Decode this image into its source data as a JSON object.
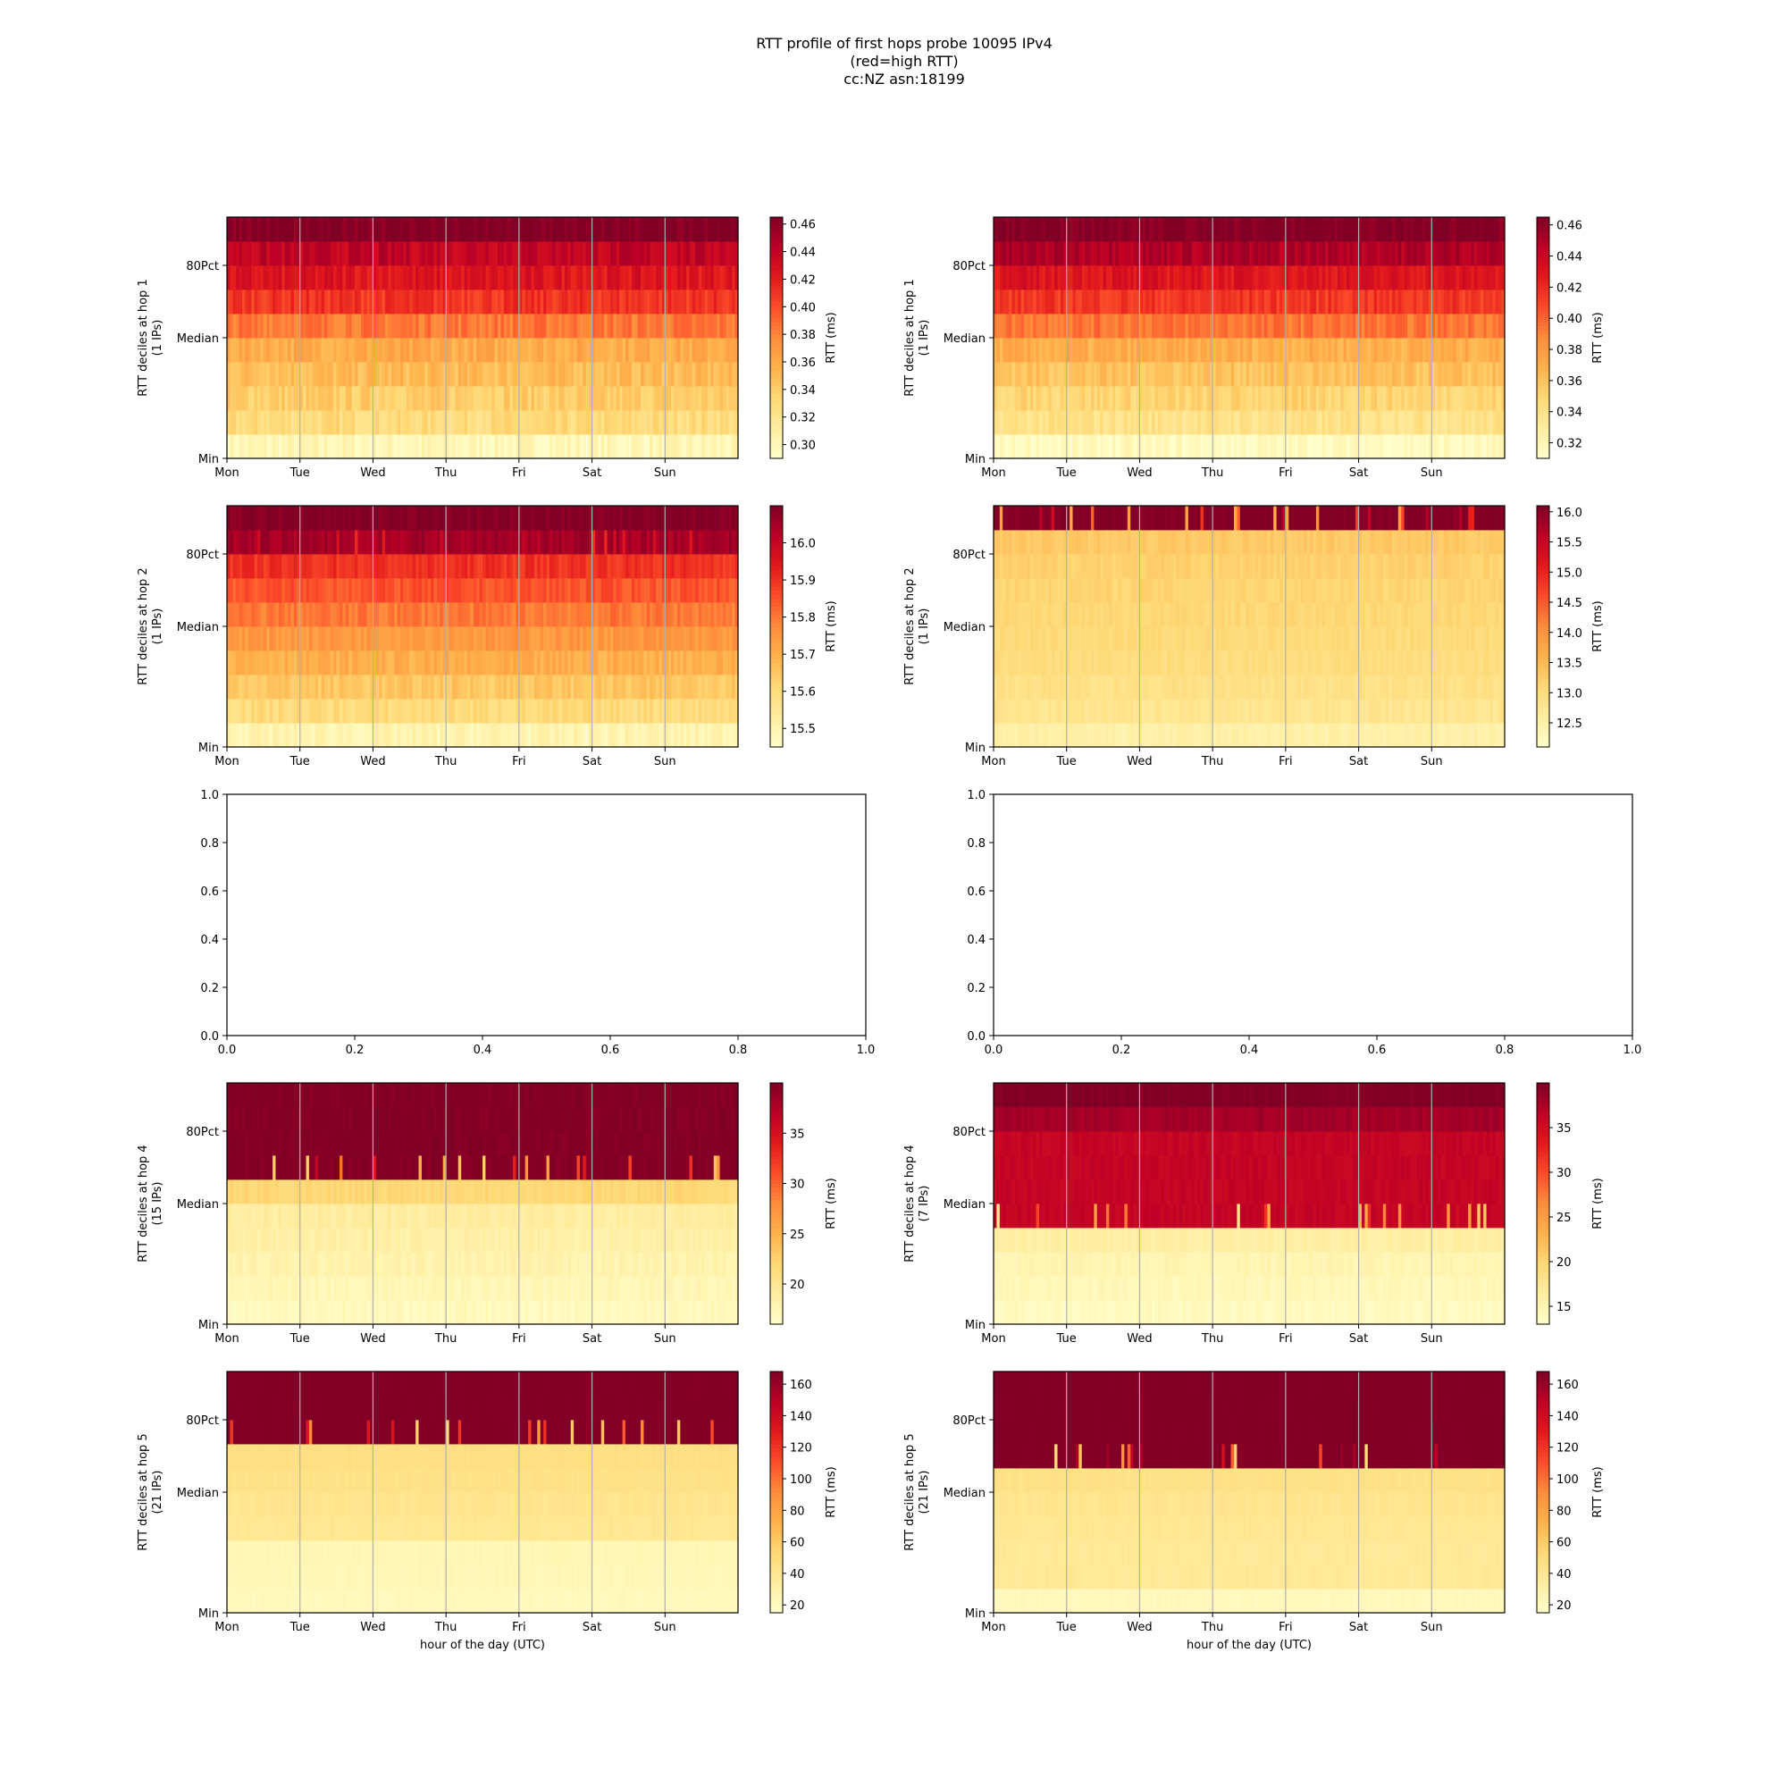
{
  "figure_title": {
    "line1": "RTT profile of first hops probe 10095 IPv4",
    "line2": "(red=high RTT)",
    "line3": "cc:NZ asn:18199"
  },
  "chart_data": [
    {
      "type": "heatmap",
      "ylabel": "RTT deciles at hop 1",
      "ylabel2": "(1 IPs)",
      "cbar_label": "RTT (ms)",
      "cbar_range": [
        0.29,
        0.465
      ],
      "cbar_ticks": [
        "0.30",
        "0.32",
        "0.34",
        "0.36",
        "0.38",
        "0.40",
        "0.42",
        "0.44",
        "0.46"
      ],
      "y_tick_labels": [
        "Min",
        "Median",
        "80Pct"
      ],
      "x_tick_labels": [
        "Mon",
        "Tue",
        "Wed",
        "Thu",
        "Fri",
        "Sat",
        "Sun"
      ],
      "xlabel": "",
      "decile_values": [
        0.3,
        0.33,
        0.34,
        0.35,
        0.36,
        0.385,
        0.41,
        0.425,
        0.44,
        0.465
      ],
      "noise": 0.01,
      "spikes": []
    },
    {
      "type": "heatmap",
      "ylabel": "RTT deciles at hop 1",
      "ylabel2": "(1 IPs)",
      "cbar_label": "RTT (ms)",
      "cbar_range": [
        0.31,
        0.465
      ],
      "cbar_ticks": [
        "0.32",
        "0.34",
        "0.36",
        "0.38",
        "0.40",
        "0.42",
        "0.44",
        "0.46"
      ],
      "y_tick_labels": [
        "Min",
        "Median",
        "80Pct"
      ],
      "x_tick_labels": [
        "Mon",
        "Tue",
        "Wed",
        "Thu",
        "Fri",
        "Sat",
        "Sun"
      ],
      "xlabel": "",
      "decile_values": [
        0.315,
        0.34,
        0.35,
        0.36,
        0.37,
        0.395,
        0.415,
        0.43,
        0.45,
        0.465
      ],
      "noise": 0.008,
      "spikes": []
    },
    {
      "type": "heatmap",
      "ylabel": "RTT deciles at hop 2",
      "ylabel2": "(1 IPs)",
      "cbar_label": "RTT (ms)",
      "cbar_range": [
        15.45,
        16.1
      ],
      "cbar_ticks": [
        "15.5",
        "15.6",
        "15.7",
        "15.8",
        "15.9",
        "16.0"
      ],
      "y_tick_labels": [
        "Min",
        "Median",
        "80Pct"
      ],
      "x_tick_labels": [
        "Mon",
        "Tue",
        "Wed",
        "Thu",
        "Fri",
        "Sat",
        "Sun"
      ],
      "xlabel": "",
      "decile_values": [
        15.5,
        15.6,
        15.65,
        15.7,
        15.75,
        15.8,
        15.85,
        15.9,
        16.05,
        16.1
      ],
      "noise": 0.03,
      "spikes": []
    },
    {
      "type": "heatmap",
      "ylabel": "RTT deciles at hop 2",
      "ylabel2": "(1 IPs)",
      "cbar_label": "RTT (ms)",
      "cbar_range": [
        12.1,
        16.1
      ],
      "cbar_ticks": [
        "12.5",
        "13.0",
        "13.5",
        "14.0",
        "14.5",
        "15.0",
        "15.5",
        "16.0"
      ],
      "y_tick_labels": [
        "Min",
        "Median",
        "80Pct"
      ],
      "x_tick_labels": [
        "Mon",
        "Tue",
        "Wed",
        "Thu",
        "Fri",
        "Sat",
        "Sun"
      ],
      "xlabel": "",
      "decile_values": [
        12.5,
        12.8,
        12.9,
        13.0,
        13.05,
        13.1,
        13.15,
        13.2,
        13.3,
        16.1
      ],
      "noise": 0.1,
      "spikes": []
    },
    {
      "type": "empty",
      "x_ticks": [
        "0.0",
        "0.2",
        "0.4",
        "0.6",
        "0.8",
        "1.0"
      ],
      "y_ticks": [
        "0.0",
        "0.2",
        "0.4",
        "0.6",
        "0.8",
        "1.0"
      ]
    },
    {
      "type": "empty",
      "x_ticks": [
        "0.0",
        "0.2",
        "0.4",
        "0.6",
        "0.8",
        "1.0"
      ],
      "y_ticks": [
        "0.0",
        "0.2",
        "0.4",
        "0.6",
        "0.8",
        "1.0"
      ]
    },
    {
      "type": "heatmap",
      "ylabel": "RTT deciles at hop 4",
      "ylabel2": "(15 IPs)",
      "cbar_label": "RTT (ms)",
      "cbar_range": [
        16,
        40
      ],
      "cbar_ticks": [
        "20",
        "25",
        "30",
        "35"
      ],
      "y_tick_labels": [
        "Min",
        "Median",
        "80Pct"
      ],
      "x_tick_labels": [
        "Mon",
        "Tue",
        "Wed",
        "Thu",
        "Fri",
        "Sat",
        "Sun"
      ],
      "xlabel": "",
      "decile_values": [
        17,
        17.5,
        18,
        18.5,
        19,
        22,
        40,
        40,
        40,
        40
      ],
      "noise": 0.6,
      "spikes": []
    },
    {
      "type": "heatmap",
      "ylabel": "RTT deciles at hop 4",
      "ylabel2": "(7 IPs)",
      "cbar_label": "RTT (ms)",
      "cbar_range": [
        13,
        40
      ],
      "cbar_ticks": [
        "15",
        "20",
        "25",
        "30",
        "35"
      ],
      "y_tick_labels": [
        "Min",
        "Median",
        "80Pct"
      ],
      "x_tick_labels": [
        "Mon",
        "Tue",
        "Wed",
        "Thu",
        "Fri",
        "Sat",
        "Sun"
      ],
      "xlabel": "",
      "decile_values": [
        14,
        14.5,
        15,
        16,
        36,
        36,
        36,
        36,
        38,
        40
      ],
      "noise": 0.6,
      "spikes": []
    },
    {
      "type": "heatmap",
      "ylabel": "RTT deciles at hop 5",
      "ylabel2": "(21 IPs)",
      "cbar_label": "RTT (ms)",
      "cbar_range": [
        15,
        168
      ],
      "cbar_ticks": [
        "20",
        "40",
        "60",
        "80",
        "100",
        "120",
        "140",
        "160"
      ],
      "y_tick_labels": [
        "Min",
        "Median",
        "80Pct"
      ],
      "x_tick_labels": [
        "Mon",
        "Tue",
        "Wed",
        "Thu",
        "Fri",
        "Sat",
        "Sun"
      ],
      "xlabel": "hour of the day (UTC)",
      "decile_values": [
        22,
        24,
        25,
        40,
        42,
        45,
        47,
        168,
        168,
        168
      ],
      "noise": 1.5,
      "spikes": []
    },
    {
      "type": "heatmap",
      "ylabel": "RTT deciles at hop 5",
      "ylabel2": "(21 IPs)",
      "cbar_label": "RTT (ms)",
      "cbar_range": [
        15,
        168
      ],
      "cbar_ticks": [
        "20",
        "40",
        "60",
        "80",
        "100",
        "120",
        "140",
        "160"
      ],
      "y_tick_labels": [
        "Min",
        "Median",
        "80Pct"
      ],
      "x_tick_labels": [
        "Mon",
        "Tue",
        "Wed",
        "Thu",
        "Fri",
        "Sat",
        "Sun"
      ],
      "xlabel": "hour of the day (UTC)",
      "decile_values": [
        22,
        38,
        38,
        40,
        42,
        45,
        168,
        168,
        168,
        168
      ],
      "noise": 1.5,
      "spikes": []
    }
  ]
}
